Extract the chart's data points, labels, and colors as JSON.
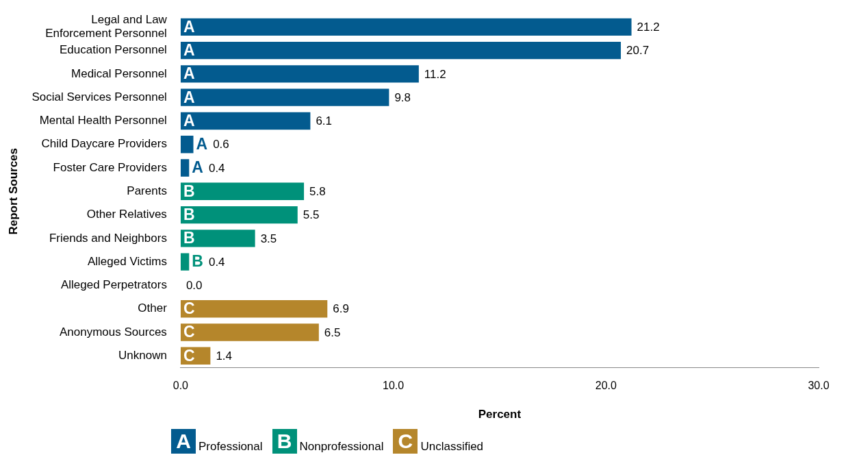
{
  "chart_data": {
    "type": "bar",
    "orientation": "horizontal",
    "stacked": true,
    "xlabel": "Percent",
    "ylabel": "Report Sources",
    "legend": "bottom",
    "annotations": [
      "A",
      "A",
      "A",
      "A",
      "A",
      "A",
      "A",
      "B",
      "B",
      "B",
      "B",
      "C",
      "C",
      "C"
    ],
    "categories": [
      "Legal and Law Enforcement Personnel",
      "Education Personnel",
      "Medical Personnel",
      "Social Services Personnel",
      "Mental Health Personnel",
      "Child Daycare Providers",
      "Foster Care Providers",
      "Parents",
      "Other Relatives",
      "Friends and Neighbors",
      "Alleged Victims",
      "Alleged Perpetrators",
      "Other",
      "Anonymous Sources",
      "Unknown"
    ],
    "series": [
      {
        "name": "Professional",
        "color": "#035b8f",
        "values": [
          21.2,
          20.7,
          11.2,
          9.8,
          6.1,
          0.6,
          0.4,
          null,
          null,
          null,
          null,
          null,
          null,
          null,
          null
        ],
        "value_labels": [
          "21.2",
          "20.7",
          "11.2",
          "9.8",
          "6.1",
          "0.6",
          "0.4",
          null,
          null,
          null,
          null,
          null,
          null,
          null,
          null
        ]
      },
      {
        "name": "Nonprofessional",
        "color": "#00917a",
        "values": [
          null,
          null,
          null,
          null,
          null,
          null,
          null,
          5.8,
          5.5,
          3.5,
          0.4,
          0,
          null,
          null,
          null
        ],
        "value_labels": [
          null,
          null,
          null,
          null,
          null,
          null,
          null,
          "5.8",
          "5.5",
          "3.5",
          "0.4",
          "0.0",
          null,
          null,
          null
        ]
      },
      {
        "name": "Unclassified",
        "color": "#b5862b",
        "values": [
          null,
          null,
          null,
          null,
          null,
          null,
          null,
          null,
          null,
          null,
          null,
          null,
          6.9,
          6.5,
          1.4
        ],
        "value_labels": [
          null,
          null,
          null,
          null,
          null,
          null,
          null,
          null,
          null,
          null,
          null,
          null,
          "6.9",
          "6.5",
          "1.4"
        ]
      }
    ],
    "xlim": [
      0,
      30
    ],
    "xticks": [
      {
        "value": 0,
        "label": "0.0"
      },
      {
        "value": 10,
        "label": "10.0"
      },
      {
        "value": 20,
        "label": "20.0"
      },
      {
        "value": 30,
        "label": "30.0"
      }
    ]
  }
}
